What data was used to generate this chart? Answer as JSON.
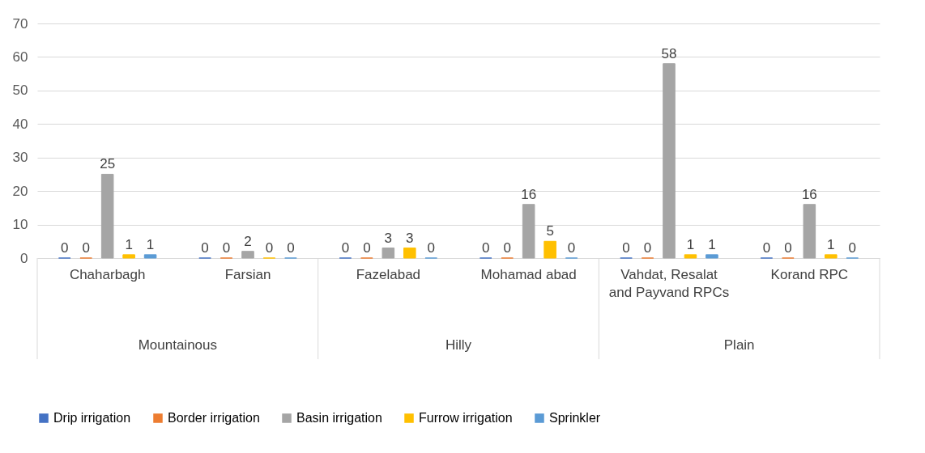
{
  "chart_data": {
    "type": "bar",
    "categories": [
      "Chaharbagh",
      "Farsian",
      "Fazelabad",
      "Mohamad abad",
      "Vahdat, Resalat and Payvand RPCs",
      "Korand RPC"
    ],
    "series": [
      {
        "name": "Drip irrigation",
        "color": "#4472c4",
        "values": [
          0,
          0,
          0,
          0,
          0,
          0
        ]
      },
      {
        "name": "Border irrigation",
        "color": "#ed7d31",
        "values": [
          0,
          0,
          0,
          0,
          0,
          0
        ]
      },
      {
        "name": "Basin irrigation",
        "color": "#a5a5a5",
        "values": [
          25,
          2,
          3,
          16,
          58,
          16
        ]
      },
      {
        "name": "Furrow irrigation",
        "color": "#ffc000",
        "values": [
          1,
          0,
          3,
          5,
          1,
          1
        ]
      },
      {
        "name": "Sprinkler",
        "color": "#5b9bd5",
        "values": [
          1,
          0,
          0,
          0,
          1,
          0
        ]
      }
    ],
    "annotations": [
      "Mountainous",
      "Hilly",
      "Plain"
    ],
    "ylim": [
      0,
      70
    ],
    "yticks": [
      0,
      10,
      20,
      30,
      40,
      50,
      60,
      70
    ],
    "grid": "y",
    "legend": "bottom",
    "data_labels": true
  }
}
